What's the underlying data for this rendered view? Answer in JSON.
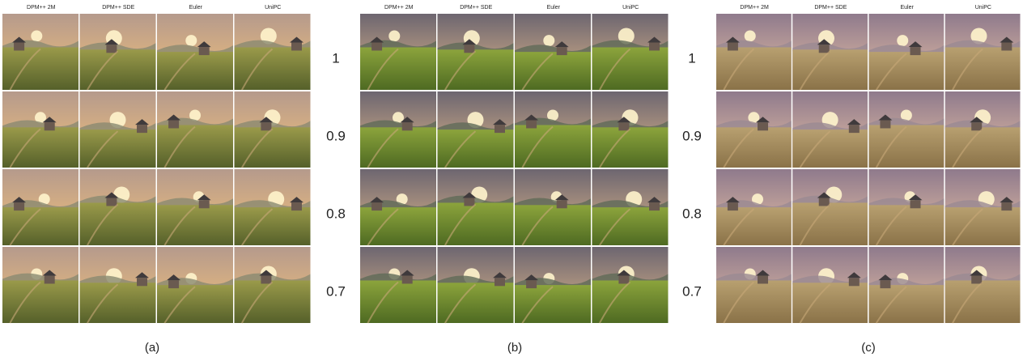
{
  "columns": [
    "DPM++ 2M",
    "DPM++ SDE",
    "Euler",
    "UniPC"
  ],
  "row_labels": [
    "1",
    "0.9",
    "0.8",
    "0.7"
  ],
  "panels": [
    {
      "caption": "(a)"
    },
    {
      "caption": "(b)"
    },
    {
      "caption": "(c)"
    }
  ]
}
